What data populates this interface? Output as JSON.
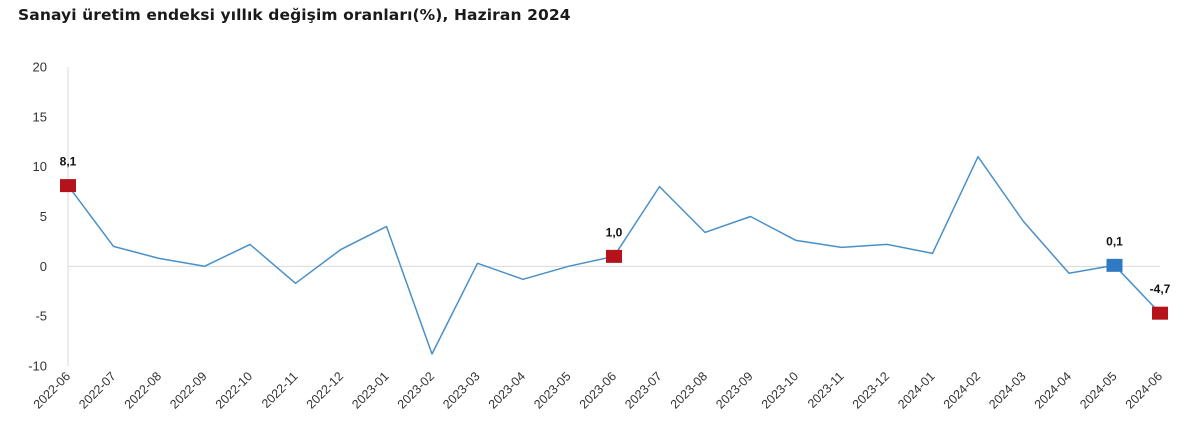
{
  "title": "Sanayi üretim endeksi yıllık değişim oranları(%), Haziran 2024",
  "chart_data": {
    "type": "line",
    "title": "Sanayi üretim endeksi yıllık değişim oranları(%), Haziran 2024",
    "xlabel": "",
    "ylabel": "",
    "ylim": [
      -10,
      20
    ],
    "yticks": [
      20,
      15,
      10,
      5,
      0,
      -5,
      -10
    ],
    "grid": false,
    "categories": [
      "2022-06",
      "2022-07",
      "2022-08",
      "2022-09",
      "2022-10",
      "2022-11",
      "2022-12",
      "2023-01",
      "2023-02",
      "2023-03",
      "2023-04",
      "2023-05",
      "2023-06",
      "2023-07",
      "2023-08",
      "2023-09",
      "2023-10",
      "2023-11",
      "2023-12",
      "2024-01",
      "2024-02",
      "2024-03",
      "2024-04",
      "2024-05",
      "2024-06"
    ],
    "series": [
      {
        "name": "",
        "color": "#4a90c8",
        "values": [
          8.1,
          2.0,
          0.8,
          0.0,
          2.2,
          -1.7,
          1.7,
          4.0,
          -8.8,
          0.3,
          -1.3,
          0.0,
          1.0,
          8.0,
          3.4,
          5.0,
          2.6,
          1.9,
          2.2,
          1.3,
          11.0,
          4.5,
          -0.7,
          0.1,
          -4.7
        ]
      }
    ],
    "highlights": [
      {
        "index": 0,
        "label": "8,1",
        "color": "#b5121b"
      },
      {
        "index": 12,
        "label": "1,0",
        "color": "#b5121b"
      },
      {
        "index": 23,
        "label": "0,1",
        "color": "#2e7bc4"
      },
      {
        "index": 24,
        "label": "-4,7",
        "color": "#b5121b"
      }
    ]
  }
}
